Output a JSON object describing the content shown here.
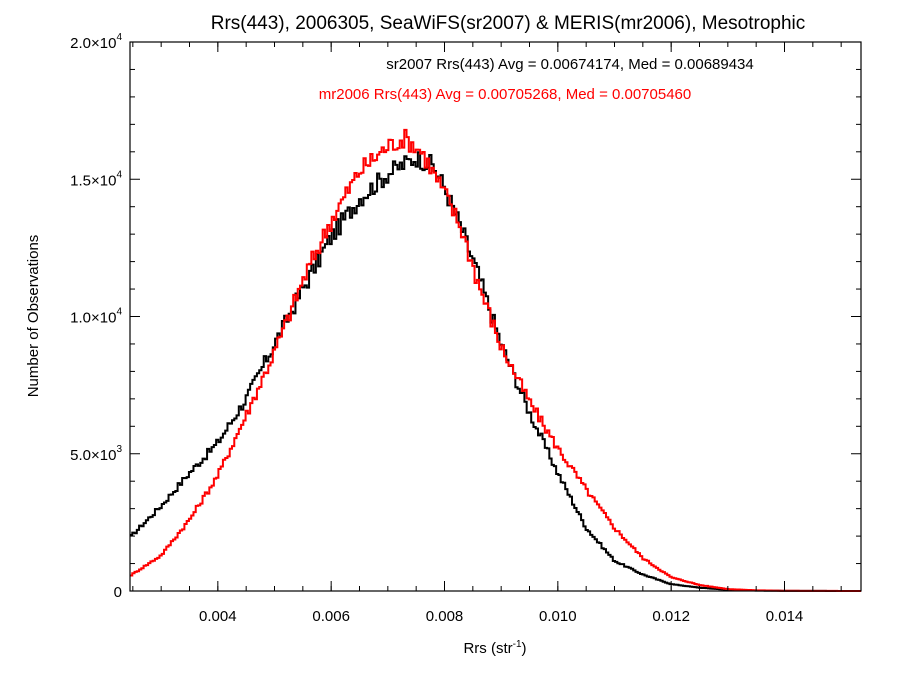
{
  "chart_data": {
    "type": "histogram-step",
    "title": "Rrs(443), 2006305, SeaWiFS(sr2007) & MERIS(mr2006), Mesotrophic",
    "xlabel": {
      "main": "Rrs (str",
      "sup": "-1",
      "close": ")"
    },
    "ylabel": "Number of Observations",
    "xlim": [
      0.00245,
      0.01535
    ],
    "ylim": [
      0,
      20000
    ],
    "x_ticks": [
      {
        "value": 0.004,
        "label": "0.004"
      },
      {
        "value": 0.006,
        "label": "0.006"
      },
      {
        "value": 0.008,
        "label": "0.008"
      },
      {
        "value": 0.01,
        "label": "0.010"
      },
      {
        "value": 0.012,
        "label": "0.012"
      },
      {
        "value": 0.014,
        "label": "0.014"
      }
    ],
    "y_ticks": [
      {
        "value": 0,
        "mant": "0",
        "exp": ""
      },
      {
        "value": 5000,
        "mant": "5.0×10",
        "exp": "3"
      },
      {
        "value": 10000,
        "mant": "1.0×10",
        "exp": "4"
      },
      {
        "value": 15000,
        "mant": "1.5×10",
        "exp": "4"
      },
      {
        "value": 20000,
        "mant": "2.0×10",
        "exp": "4"
      }
    ],
    "annotations": [
      {
        "text": "sr2007 Rrs(443) Avg = 0.00674174, Med = 0.00689434",
        "color": "#000000"
      },
      {
        "text": "mr2006 Rrs(443) Avg = 0.00705268, Med = 0.00705460",
        "color": "#ff0000"
      }
    ],
    "series": [
      {
        "name": "sr2007",
        "color": "#000000",
        "points": [
          [
            0.00245,
            1950
          ],
          [
            0.003,
            3100
          ],
          [
            0.0035,
            4300
          ],
          [
            0.004,
            5400
          ],
          [
            0.0045,
            7000
          ],
          [
            0.005,
            9000
          ],
          [
            0.0055,
            11000
          ],
          [
            0.006,
            12900
          ],
          [
            0.0065,
            14300
          ],
          [
            0.007,
            15200
          ],
          [
            0.0075,
            15800
          ],
          [
            0.0078,
            15500
          ],
          [
            0.008,
            14700
          ],
          [
            0.0083,
            13200
          ],
          [
            0.0086,
            11500
          ],
          [
            0.009,
            9000
          ],
          [
            0.0095,
            6500
          ],
          [
            0.01,
            4300
          ],
          [
            0.0105,
            2300
          ],
          [
            0.011,
            1100
          ],
          [
            0.0115,
            600
          ],
          [
            0.012,
            250
          ],
          [
            0.0125,
            120
          ],
          [
            0.013,
            45
          ],
          [
            0.0135,
            15
          ],
          [
            0.014,
            5
          ],
          [
            0.01535,
            0
          ]
        ]
      },
      {
        "name": "mr2006",
        "color": "#ff0000",
        "points": [
          [
            0.00245,
            550
          ],
          [
            0.003,
            1300
          ],
          [
            0.0035,
            2600
          ],
          [
            0.004,
            4200
          ],
          [
            0.0045,
            6400
          ],
          [
            0.005,
            8700
          ],
          [
            0.0055,
            11300
          ],
          [
            0.006,
            13500
          ],
          [
            0.0065,
            15300
          ],
          [
            0.007,
            16200
          ],
          [
            0.0073,
            16500
          ],
          [
            0.0076,
            16000
          ],
          [
            0.008,
            14500
          ],
          [
            0.0083,
            13200
          ],
          [
            0.0086,
            11200
          ],
          [
            0.009,
            8900
          ],
          [
            0.0095,
            6900
          ],
          [
            0.01,
            5200
          ],
          [
            0.0105,
            3700
          ],
          [
            0.011,
            2300
          ],
          [
            0.0115,
            1200
          ],
          [
            0.012,
            500
          ],
          [
            0.0125,
            220
          ],
          [
            0.013,
            70
          ],
          [
            0.0135,
            25
          ],
          [
            0.014,
            8
          ],
          [
            0.01535,
            0
          ]
        ]
      }
    ]
  }
}
